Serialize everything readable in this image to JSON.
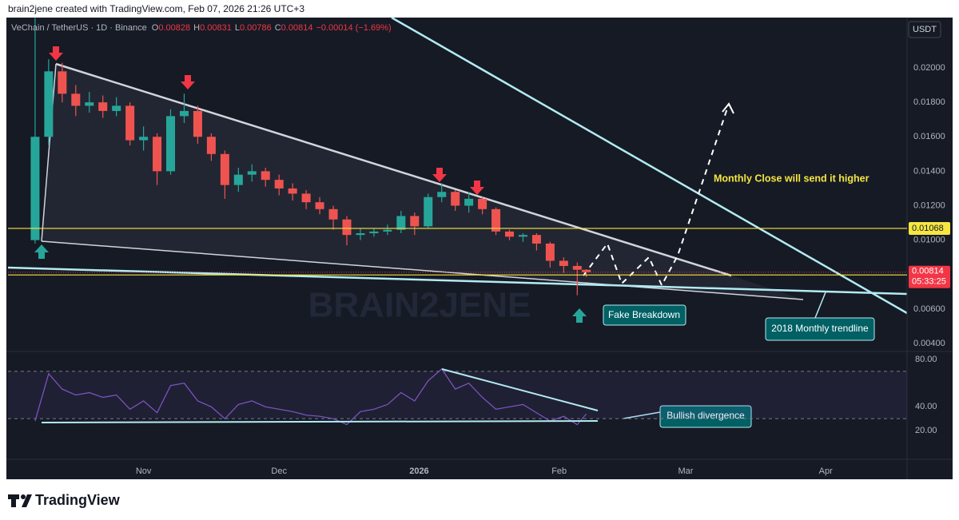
{
  "header": {
    "attribution": "brain2jene created with TradingView.com, Feb 07, 2026 21:26 UTC+3"
  },
  "chart_data": {
    "type": "candlestick",
    "title": "VeChain / TetherUS · 1D · Binance",
    "ohlc_labels": [
      "O",
      "H",
      "L",
      "C"
    ],
    "change": "−0.00014 (−1.69%)",
    "currency": "USDT",
    "x": [
      7,
      10,
      13,
      16,
      19,
      22,
      25,
      28,
      31,
      34,
      37,
      40,
      43,
      46,
      49,
      52,
      55,
      58,
      61,
      64,
      67,
      70,
      73,
      76,
      79,
      82,
      85,
      88,
      91,
      94,
      97,
      100,
      103,
      106,
      109,
      112,
      115,
      118,
      121,
      124,
      127,
      129
    ],
    "open": [
      0.01,
      0.016,
      0.0198,
      0.0185,
      0.0178,
      0.018,
      0.0175,
      0.0178,
      0.0158,
      0.016,
      0.014,
      0.0172,
      0.0175,
      0.016,
      0.015,
      0.0132,
      0.0138,
      0.014,
      0.0135,
      0.013,
      0.0127,
      0.0122,
      0.0118,
      0.0112,
      0.0103,
      0.0104,
      0.0105,
      0.0106,
      0.0114,
      0.0108,
      0.0125,
      0.0128,
      0.012,
      0.0124,
      0.0118,
      0.0105,
      0.0102,
      0.0103,
      0.0098,
      0.0088,
      0.0085,
      0.00828
    ],
    "high": [
      0.0229,
      0.0205,
      0.0203,
      0.019,
      0.0186,
      0.0184,
      0.0183,
      0.018,
      0.0166,
      0.0162,
      0.0176,
      0.0185,
      0.0178,
      0.0162,
      0.0152,
      0.0142,
      0.0144,
      0.0142,
      0.0138,
      0.0133,
      0.0129,
      0.0125,
      0.012,
      0.0114,
      0.0107,
      0.0107,
      0.0109,
      0.0117,
      0.0116,
      0.0127,
      0.0133,
      0.0129,
      0.0128,
      0.0125,
      0.0119,
      0.0106,
      0.0104,
      0.0104,
      0.0099,
      0.009,
      0.0087,
      0.00831
    ],
    "low": [
      0.0098,
      0.0155,
      0.018,
      0.0172,
      0.0174,
      0.0171,
      0.0172,
      0.0155,
      0.0152,
      0.0132,
      0.0138,
      0.0168,
      0.0156,
      0.0146,
      0.0124,
      0.0128,
      0.0134,
      0.0131,
      0.0126,
      0.0123,
      0.0118,
      0.0115,
      0.0106,
      0.0097,
      0.01,
      0.0102,
      0.0103,
      0.0104,
      0.0103,
      0.0107,
      0.0122,
      0.0117,
      0.0116,
      0.0115,
      0.0103,
      0.01,
      0.0099,
      0.0094,
      0.0084,
      0.0081,
      0.0068,
      0.00786
    ],
    "close": [
      0.016,
      0.0198,
      0.0185,
      0.0178,
      0.018,
      0.0175,
      0.0178,
      0.0158,
      0.016,
      0.014,
      0.0172,
      0.0175,
      0.016,
      0.015,
      0.0132,
      0.0138,
      0.014,
      0.0135,
      0.013,
      0.0127,
      0.0122,
      0.0118,
      0.0112,
      0.0103,
      0.0104,
      0.0105,
      0.0106,
      0.0114,
      0.0108,
      0.0125,
      0.0128,
      0.012,
      0.0124,
      0.0118,
      0.0105,
      0.0102,
      0.0103,
      0.0098,
      0.0088,
      0.0085,
      0.00828,
      0.00814
    ],
    "colors": {
      "up": "#26a69a",
      "down": "#ef5350"
    },
    "xlim": [
      1,
      200
    ],
    "xticks": [
      {
        "value": 31,
        "label": "Nov"
      },
      {
        "value": 61,
        "label": "Dec"
      },
      {
        "value": 92,
        "label": "2026"
      },
      {
        "value": 123,
        "label": "Feb"
      },
      {
        "value": 151,
        "label": "Mar"
      },
      {
        "value": 182,
        "label": "Apr"
      }
    ],
    "ylim": [
      0.003536,
      0.022922
    ],
    "yticks": [
      {
        "value": 0.004,
        "label": "0.00400"
      },
      {
        "value": 0.006,
        "label": "0.00600"
      },
      {
        "value": 0.01,
        "label": "0.01000"
      },
      {
        "value": 0.012,
        "label": "0.01200"
      },
      {
        "value": 0.014,
        "label": "0.01400"
      },
      {
        "value": 0.016,
        "label": "0.01600"
      },
      {
        "value": 0.018,
        "label": "0.01800"
      },
      {
        "value": 0.02,
        "label": "0.02000"
      }
    ],
    "price_lines": [
      {
        "value": 0.01068,
        "color": "#f5e642"
      },
      {
        "value": 0.00798,
        "color": "#f5e642"
      }
    ],
    "last_price": {
      "value": 0.00814,
      "countdown": "05:33:25",
      "color": "#f23645"
    },
    "annotations": [
      "Monthly Close will send it higher",
      "Fake Breakdown",
      "2018 Monthly trendline",
      "Bullish divergence"
    ],
    "watermark": "BRAIN2JENE",
    "rsi": {
      "values": [
        28,
        68,
        55,
        50,
        52,
        48,
        50,
        38,
        45,
        35,
        58,
        60,
        45,
        40,
        30,
        42,
        45,
        40,
        38,
        36,
        33,
        32,
        30,
        25,
        36,
        38,
        42,
        52,
        45,
        62,
        72,
        55,
        60,
        48,
        38,
        40,
        42,
        35,
        28,
        32,
        25,
        34
      ],
      "color": "#7e57c2",
      "ylim": [
        -4.3,
        83.4
      ],
      "yticks": [
        {
          "value": 20,
          "label": "20.00"
        },
        {
          "value": 40,
          "label": "40.00"
        },
        {
          "value": 80,
          "label": "80.00"
        }
      ],
      "bands": [
        70,
        30
      ]
    }
  },
  "footer": {
    "brand": "TradingView"
  }
}
